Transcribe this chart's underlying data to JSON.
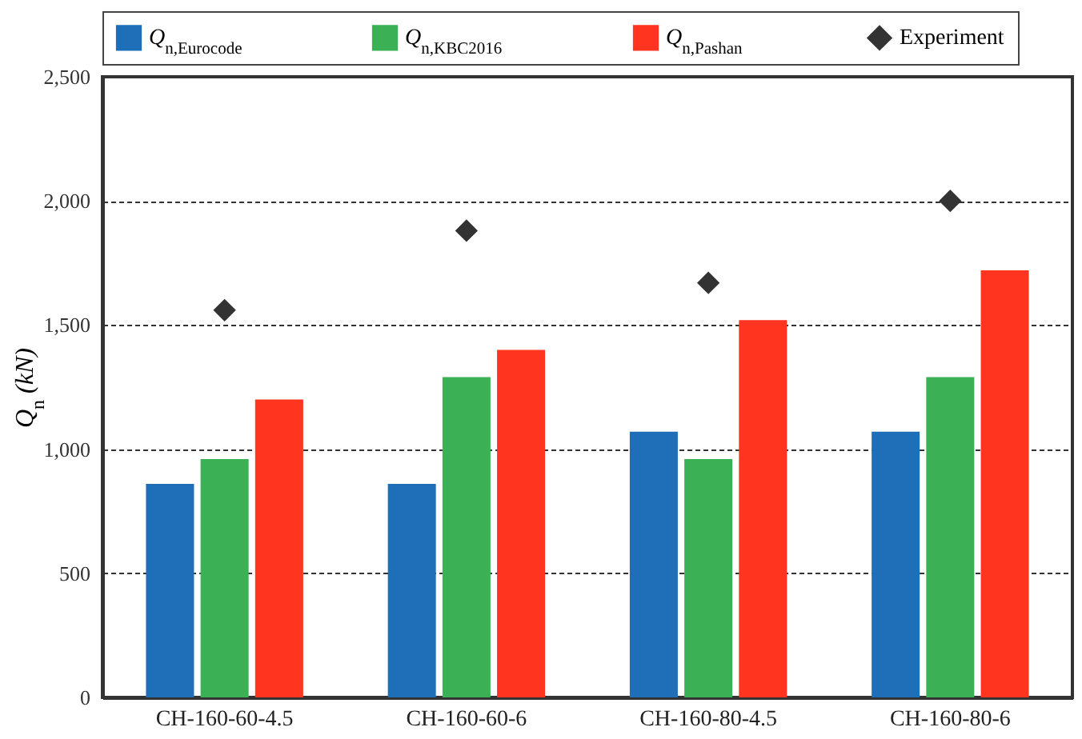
{
  "chart_data": {
    "type": "bar",
    "ylabel": "Q$_{n}$ (kN)",
    "categories": [
      "CH-160-60-4.5",
      "CH-160-60-6",
      "CH-160-80-4.5",
      "CH-160-80-6"
    ],
    "series": [
      {
        "name": "Q$_{n,Eurocode}$",
        "color": "#1f6fb8",
        "values": [
          860,
          860,
          1070,
          1070
        ]
      },
      {
        "name": "Q$_{n,KBC2016}$",
        "color": "#3cb054",
        "values": [
          960,
          1290,
          960,
          1290
        ]
      },
      {
        "name": "Q$_{n,Pashan}$",
        "color": "#ff3520",
        "values": [
          1200,
          1400,
          1520,
          1720
        ]
      },
      {
        "name": "Experiment",
        "type": "scatter",
        "marker": "diamond",
        "color": "#333333",
        "x": [
          "CH-160-60-4.5",
          "CH-160-60-6",
          "CH-160-80-4.5",
          "CH-160-80-6"
        ],
        "values": [
          1560,
          1880,
          1670,
          2000
        ]
      }
    ],
    "ylim": [
      0,
      2500
    ],
    "yticks": [
      {
        "value": 0,
        "label": "0"
      },
      {
        "value": 500,
        "label": "500"
      },
      {
        "value": 1000,
        "label": "1,000"
      },
      {
        "value": 1500,
        "label": "1,500"
      },
      {
        "value": 2000,
        "label": "2,000"
      },
      {
        "value": 2500,
        "label": "2,500"
      }
    ],
    "grid": "y",
    "legend": "top"
  }
}
